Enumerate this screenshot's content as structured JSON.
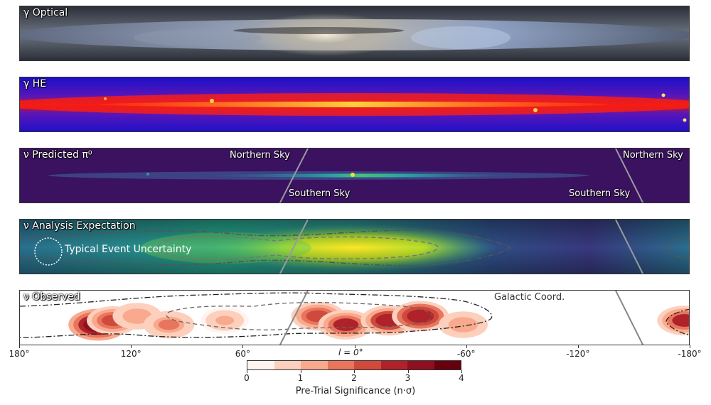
{
  "panels": [
    {
      "title": "γ Optical"
    },
    {
      "title": "γ HE"
    },
    {
      "title": "ν Predicted π⁰"
    },
    {
      "title": "ν Analysis Expectation"
    },
    {
      "title": "ν Observed"
    }
  ],
  "sky_labels": {
    "northern": "Northern Sky",
    "southern": "Southern Sky"
  },
  "annotations": {
    "event_uncertainty": "Typical Event Uncertainty",
    "coord": "Galactic Coord.",
    "l_label": "l = 0°"
  },
  "colors": {
    "significance_scale": [
      "#fff5f0",
      "#fcd0bd",
      "#f9a98d",
      "#e8755d",
      "#cf4a3c",
      "#b0222a",
      "#8c1020",
      "#67000d"
    ]
  },
  "chart_data": {
    "type": "heatmap",
    "description_note": "",
    "x_axis": {
      "range": [
        180,
        -180
      ],
      "ticks": [
        "180°",
        "120°",
        "60°",
        "",
        "-60°",
        "-120°",
        "-180°"
      ],
      "tick_values": [
        180,
        120,
        60,
        0,
        -60,
        -120,
        -180
      ]
    },
    "colorbar": {
      "label": "Pre-Trial Significance (n·σ)",
      "range": [
        0,
        4
      ],
      "ticks": [
        "0",
        "1",
        "2",
        "3",
        "4"
      ],
      "tick_values": [
        0,
        1,
        2,
        3,
        4
      ]
    },
    "observed_hotspots": [
      {
        "l": 138,
        "significance": 3.6
      },
      {
        "l": 130,
        "significance": 2.0
      },
      {
        "l": 117,
        "significance": 1.2
      },
      {
        "l": 100,
        "significance": 1.6
      },
      {
        "l": 70,
        "significance": 1.0
      },
      {
        "l": 20,
        "significance": 2.2
      },
      {
        "l": 5,
        "significance": 2.6
      },
      {
        "l": -18,
        "significance": 2.8
      },
      {
        "l": -35,
        "significance": 3.0
      },
      {
        "l": -58,
        "significance": 1.2
      },
      {
        "l": -177,
        "significance": 2.6
      }
    ]
  }
}
